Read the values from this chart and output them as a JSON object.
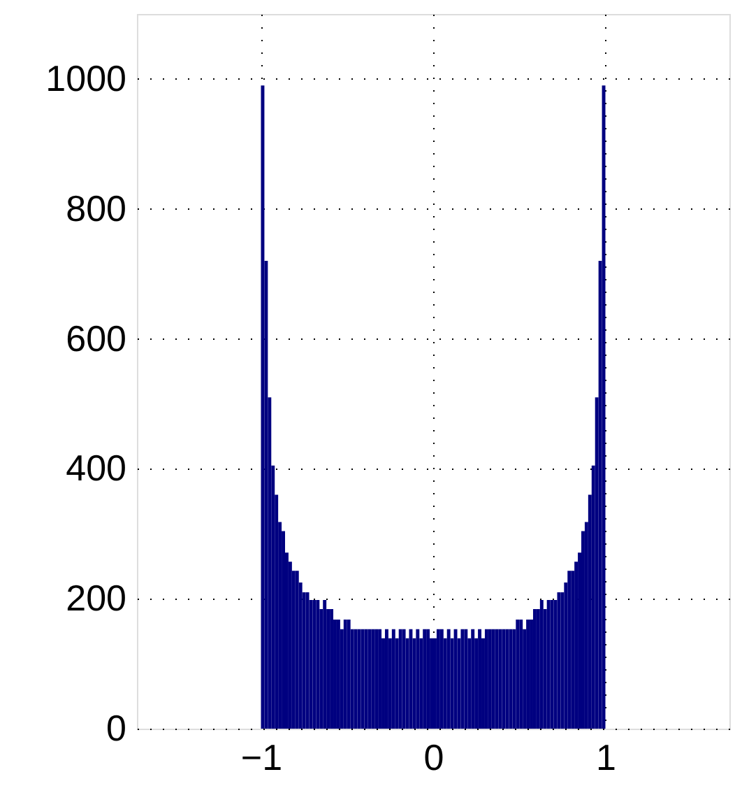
{
  "chart_data": {
    "type": "histogram",
    "color": "#000080",
    "bins": [
      -1,
      -0.98,
      -0.96,
      -0.94,
      -0.92,
      -0.9,
      -0.88,
      -0.86,
      -0.84,
      -0.82,
      -0.8,
      -0.78,
      -0.76,
      -0.74,
      -0.72,
      -0.7,
      -0.68,
      -0.66,
      -0.64,
      -0.62,
      -0.6,
      -0.58,
      -0.56,
      -0.54,
      -0.52,
      -0.5,
      -0.48,
      -0.46,
      -0.44,
      -0.42,
      -0.4,
      -0.38,
      -0.36,
      -0.34,
      -0.32,
      -0.3,
      -0.28,
      -0.26,
      -0.24,
      -0.22,
      -0.2,
      -0.18,
      -0.16,
      -0.14,
      -0.12,
      -0.1,
      -0.08,
      -0.06,
      -0.04,
      -0.02,
      0,
      0.02,
      0.04,
      0.06,
      0.08,
      0.1,
      0.12,
      0.14,
      0.16,
      0.18,
      0.2,
      0.22,
      0.24,
      0.26,
      0.28,
      0.3,
      0.32,
      0.34,
      0.36,
      0.38,
      0.4,
      0.42,
      0.44,
      0.46,
      0.48,
      0.5,
      0.52,
      0.54,
      0.56,
      0.58,
      0.6,
      0.62,
      0.64,
      0.66,
      0.68,
      0.7,
      0.72,
      0.74,
      0.76,
      0.78,
      0.8,
      0.82,
      0.84,
      0.86,
      0.88,
      0.9,
      0.92,
      0.94,
      0.96,
      0.98,
      1
    ],
    "values": [
      990,
      720,
      510,
      405,
      360,
      318,
      304,
      271,
      257,
      243,
      243,
      225,
      210,
      210,
      198,
      198,
      198,
      184,
      198,
      184,
      184,
      168,
      168,
      153,
      168,
      168,
      153,
      153,
      153,
      153,
      153,
      153,
      153,
      153,
      153,
      139,
      153,
      139,
      153,
      139,
      153,
      153,
      139,
      153,
      139,
      153,
      139,
      153,
      153,
      139,
      139,
      153,
      153,
      139,
      153,
      139,
      153,
      139,
      153,
      153,
      139,
      153,
      139,
      153,
      139,
      153,
      153,
      153,
      153,
      153,
      153,
      153,
      153,
      153,
      168,
      168,
      153,
      168,
      168,
      184,
      184,
      198,
      184,
      198,
      198,
      198,
      210,
      210,
      225,
      243,
      243,
      257,
      271,
      304,
      318,
      360,
      405,
      510,
      720,
      990
    ],
    "xlim": [
      -1.72,
      1.72
    ],
    "xticks": [
      {
        "value": -1,
        "label": "−1"
      },
      0,
      1
    ],
    "ylim": [
      0,
      1100
    ],
    "yticks": [
      0,
      200,
      400,
      600,
      800,
      1000
    ],
    "grid": true
  }
}
